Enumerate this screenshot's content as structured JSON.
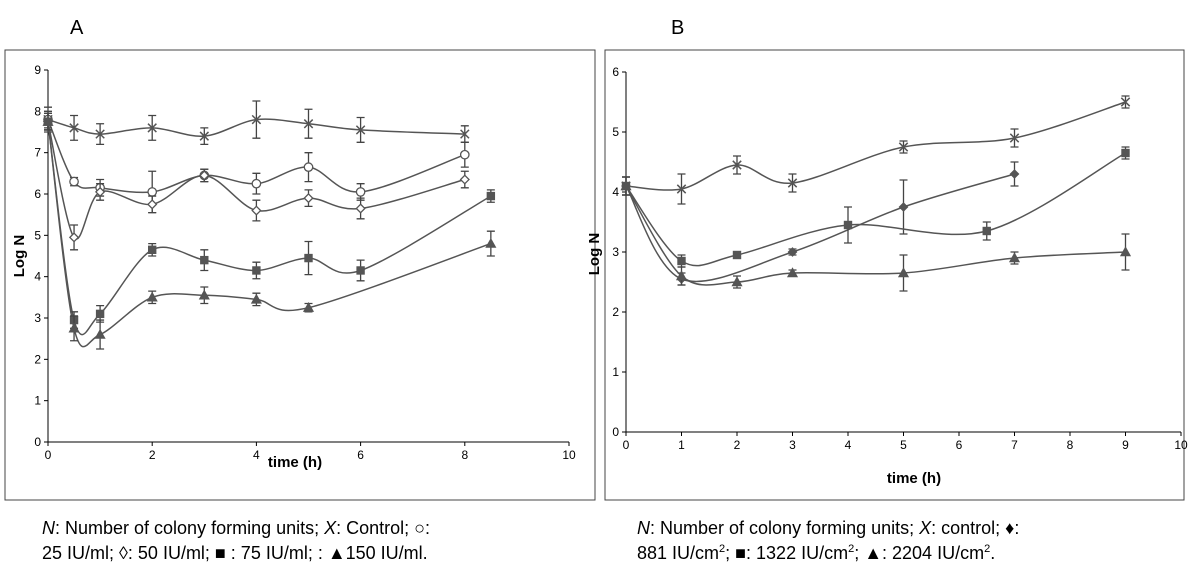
{
  "chart_data": [
    {
      "panel": "A",
      "type": "line",
      "xlabel": "time (h)",
      "ylabel": "Log N",
      "xlim": [
        0,
        10
      ],
      "ylim": [
        0,
        9
      ],
      "xticks": [
        0,
        2,
        4,
        6,
        8,
        10
      ],
      "yticks": [
        0,
        1,
        2,
        3,
        4,
        5,
        6,
        7,
        8,
        9
      ],
      "grid": false,
      "series": [
        {
          "marker": "x",
          "x": [
            0,
            0.5,
            1,
            2,
            3,
            4,
            5,
            6,
            8
          ],
          "y": [
            7.8,
            7.6,
            7.45,
            7.6,
            7.4,
            7.8,
            7.7,
            7.55,
            7.45
          ],
          "err": [
            0.3,
            0.3,
            0.25,
            0.3,
            0.2,
            0.45,
            0.35,
            0.3,
            0.2
          ]
        },
        {
          "marker": "circle",
          "x": [
            0,
            0.5,
            1,
            2,
            3,
            4,
            5,
            6,
            8
          ],
          "y": [
            7.8,
            6.3,
            6.15,
            6.05,
            6.45,
            6.25,
            6.65,
            6.05,
            6.95
          ],
          "err": [
            0.2,
            0.1,
            0.2,
            0.5,
            0.15,
            0.25,
            0.35,
            0.2,
            0.3
          ]
        },
        {
          "marker": "diamond-open",
          "x": [
            0,
            0.5,
            1,
            2,
            3,
            4,
            5,
            6,
            8
          ],
          "y": [
            7.75,
            4.95,
            6.05,
            5.75,
            6.45,
            5.6,
            5.9,
            5.65,
            6.35
          ],
          "err": [
            0.2,
            0.3,
            0.2,
            0.2,
            0.15,
            0.25,
            0.2,
            0.25,
            0.2
          ]
        },
        {
          "marker": "square",
          "x": [
            0,
            0.5,
            1,
            2,
            3,
            4,
            5,
            6,
            8.5
          ],
          "y": [
            7.75,
            2.95,
            3.1,
            4.65,
            4.4,
            4.15,
            4.45,
            4.15,
            5.95
          ],
          "err": [
            0.2,
            0.2,
            0.2,
            0.15,
            0.25,
            0.2,
            0.4,
            0.25,
            0.15
          ]
        },
        {
          "marker": "triangle",
          "x": [
            0,
            0.5,
            1,
            2,
            3,
            4,
            5,
            8.5
          ],
          "y": [
            7.75,
            2.75,
            2.6,
            3.5,
            3.55,
            3.45,
            3.25,
            4.8
          ],
          "err": [
            0.2,
            0.3,
            0.35,
            0.15,
            0.2,
            0.15,
            0.1,
            0.3
          ]
        }
      ]
    },
    {
      "panel": "B",
      "type": "line",
      "xlabel": "time (h)",
      "ylabel": "Log N",
      "xlim": [
        0,
        10
      ],
      "ylim": [
        0,
        6
      ],
      "xticks": [
        0,
        1,
        2,
        3,
        4,
        5,
        6,
        7,
        8,
        9,
        10
      ],
      "yticks": [
        0,
        1,
        2,
        3,
        4,
        5,
        6
      ],
      "grid": false,
      "series": [
        {
          "marker": "x",
          "x": [
            0,
            1,
            2,
            3,
            5,
            7,
            9
          ],
          "y": [
            4.1,
            4.05,
            4.45,
            4.15,
            4.75,
            4.9,
            5.5
          ],
          "err": [
            0.15,
            0.25,
            0.15,
            0.15,
            0.1,
            0.15,
            0.1
          ]
        },
        {
          "marker": "diamond",
          "x": [
            0,
            1,
            3,
            5,
            7
          ],
          "y": [
            4.1,
            2.55,
            3.0,
            3.75,
            4.3
          ],
          "err": [
            0.15,
            0.1,
            0.05,
            0.45,
            0.2
          ]
        },
        {
          "marker": "square",
          "x": [
            0,
            1,
            2,
            4,
            6.5,
            9
          ],
          "y": [
            4.1,
            2.85,
            2.95,
            3.45,
            3.35,
            4.65
          ],
          "err": [
            0.15,
            0.1,
            0.05,
            0.3,
            0.15,
            0.1
          ]
        },
        {
          "marker": "triangle",
          "x": [
            0,
            1,
            2,
            3,
            5,
            7,
            9
          ],
          "y": [
            4.1,
            2.6,
            2.5,
            2.65,
            2.65,
            2.9,
            3.0
          ],
          "err": [
            0.15,
            0.15,
            0.1,
            0.05,
            0.3,
            0.1,
            0.3
          ]
        }
      ]
    }
  ],
  "captions": {
    "a": {
      "sym_n": "N",
      "t1": ": Number of colony forming units; ",
      "sym_x": "X",
      "t2": ": Control; ○:",
      "line2": "25 IU/ml; ◊: 50 IU/ml; ■ : 75 IU/ml; : ▲150 IU/ml."
    },
    "b": {
      "sym_n": "N",
      "t1": ": Number of colony forming units; ",
      "sym_x": "X",
      "t2": ": control; ♦:",
      "p1": "881 IU/cm",
      "p2": "; ■: 1322 IU/cm",
      "p3": "; ▲: 2204 IU/cm",
      "p4": ".",
      "sup": "2"
    }
  }
}
